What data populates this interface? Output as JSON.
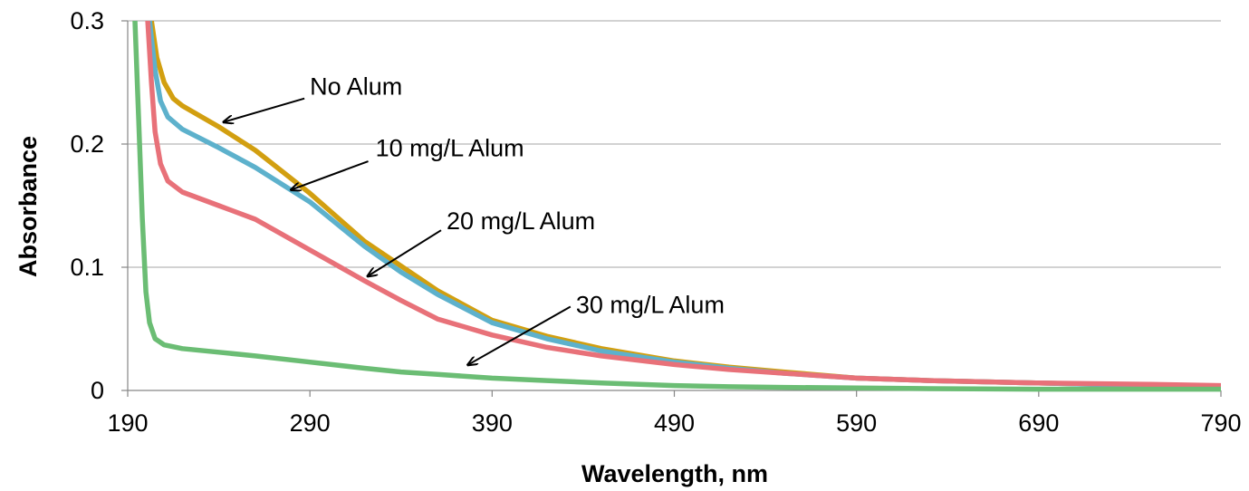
{
  "chart_data": {
    "type": "line",
    "title": "",
    "xlabel": "Wavelength, nm",
    "ylabel": "Absorbance",
    "xlim": [
      190,
      790
    ],
    "ylim": [
      0,
      0.3
    ],
    "x_ticks": [
      "190",
      "290",
      "390",
      "490",
      "590",
      "690",
      "790"
    ],
    "y_ticks": [
      "0",
      "0.1",
      "0.2",
      "0.3"
    ],
    "grid": "horizontal",
    "legend": "none",
    "series": [
      {
        "color": "#d29f10",
        "x": [
          203,
          206,
          210,
          215,
          220,
          240,
          260,
          290,
          320,
          340,
          360,
          390,
          420,
          450,
          490,
          520,
          550,
          590,
          630,
          690,
          750,
          790
        ],
        "y": [
          0.3,
          0.27,
          0.25,
          0.237,
          0.231,
          0.214,
          0.195,
          0.16,
          0.121,
          0.101,
          0.081,
          0.057,
          0.044,
          0.034,
          0.024,
          0.019,
          0.015,
          0.01,
          0.008,
          0.006,
          0.004,
          0.003
        ]
      },
      {
        "color": "#5db1cc",
        "x": [
          202,
          205,
          208,
          212,
          220,
          240,
          260,
          290,
          320,
          340,
          360,
          390,
          420,
          450,
          490,
          520,
          550,
          590,
          630,
          690,
          750,
          790
        ],
        "y": [
          0.3,
          0.26,
          0.235,
          0.222,
          0.212,
          0.197,
          0.181,
          0.153,
          0.117,
          0.096,
          0.078,
          0.055,
          0.042,
          0.032,
          0.023,
          0.018,
          0.014,
          0.01,
          0.008,
          0.006,
          0.004,
          0.003
        ]
      },
      {
        "color": "#e87179",
        "x": [
          201,
          203,
          205,
          208,
          212,
          220,
          240,
          260,
          290,
          320,
          340,
          360,
          390,
          420,
          450,
          490,
          520,
          550,
          590,
          630,
          690,
          750,
          790
        ],
        "y": [
          0.3,
          0.25,
          0.21,
          0.184,
          0.17,
          0.161,
          0.15,
          0.139,
          0.114,
          0.089,
          0.073,
          0.058,
          0.045,
          0.035,
          0.028,
          0.021,
          0.017,
          0.014,
          0.01,
          0.008,
          0.006,
          0.005,
          0.004
        ]
      },
      {
        "color": "#6bbd74",
        "x": [
          194,
          196,
          198,
          200,
          202,
          205,
          210,
          220,
          240,
          260,
          290,
          320,
          340,
          360,
          390,
          420,
          450,
          490,
          520,
          550,
          590,
          630,
          690,
          750,
          790
        ],
        "y": [
          0.3,
          0.22,
          0.14,
          0.08,
          0.055,
          0.042,
          0.037,
          0.034,
          0.031,
          0.028,
          0.023,
          0.018,
          0.015,
          0.013,
          0.01,
          0.008,
          0.006,
          0.004,
          0.003,
          0.0025,
          0.002,
          0.0015,
          0.001,
          0.001,
          0.001
        ]
      }
    ],
    "annotations": [
      {
        "label": "No Alum",
        "text_x": 290,
        "text_y": 0.24,
        "arrow_from": [
          287,
          0.237
        ],
        "arrow_to": [
          243,
          0.218
        ]
      },
      {
        "label": "10 mg/L Alum",
        "text_x": 326,
        "text_y": 0.19,
        "arrow_from": [
          322,
          0.186
        ],
        "arrow_to": [
          280,
          0.163
        ]
      },
      {
        "label": "20 mg/L Alum",
        "text_x": 365,
        "text_y": 0.131,
        "arrow_from": [
          362,
          0.13
        ],
        "arrow_to": [
          322,
          0.093
        ]
      },
      {
        "label": "30 mg/L Alum",
        "text_x": 436,
        "text_y": 0.063,
        "arrow_from": [
          433,
          0.068
        ],
        "arrow_to": [
          377,
          0.021
        ]
      }
    ]
  }
}
